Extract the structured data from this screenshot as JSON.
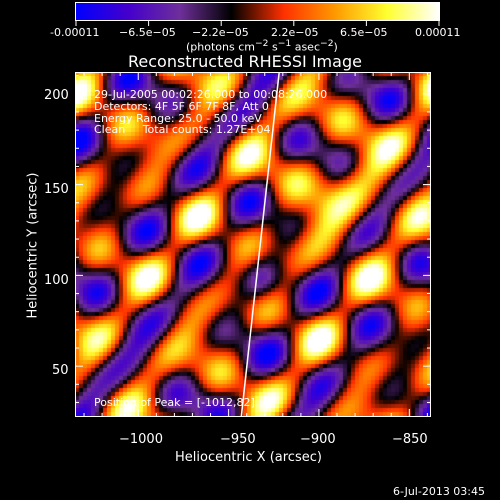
{
  "colorbar": {
    "tick_labels": [
      "-0.00011",
      "−6.5e−05",
      "−2.2e−05",
      "2.2e−05",
      "6.5e−05",
      "0.00011"
    ],
    "unit_label_html": "(photons cm<sup>−2</sup> s<sup>−1</sup> asec<sup>−2</sup>)",
    "unit_label_text": "(photons cm-2 s-1 asec-2)",
    "colors": [
      "#0000ff",
      "#4400cc",
      "#6e2f9a",
      "#000000",
      "#ff3000",
      "#ff9a00",
      "#ffff30",
      "#ffffff"
    ]
  },
  "title": "Reconstructed RHESSI Image",
  "info": {
    "time": "29-Jul-2005 00:02:26.000 to 00:08:26.000",
    "detectors": "Detectors: 4F 5F 6F 7F 8F, Att 0",
    "energy": "Energy Range: 25.0 - 50.0 keV",
    "clean": "Clean     Total counts: 1.27E+04",
    "peak": "Position of Peak = [-1012,82]"
  },
  "chart_data": {
    "type": "heatmap",
    "title": "Reconstructed RHESSI Image",
    "xlabel": "Heliocentric X (arcsec)",
    "ylabel": "Heliocentric Y (arcsec)",
    "xlim": [
      -1035,
      -838
    ],
    "ylim": [
      22,
      212
    ],
    "x_ticks": [
      -1000,
      -950,
      -900,
      -850
    ],
    "y_ticks": [
      50,
      100,
      150,
      200
    ],
    "x_tick_labels": [
      "−1000",
      "−950",
      "−900",
      "−850"
    ],
    "y_tick_labels": [
      "50",
      "100",
      "150",
      "200"
    ],
    "colorbar_range": [
      -0.00011,
      0.00011
    ],
    "limb_line": [
      [
        -943,
        22
      ],
      [
        -922,
        212
      ]
    ]
  },
  "footer": {
    "timestamp": "6-Jul-2013 03:45"
  }
}
